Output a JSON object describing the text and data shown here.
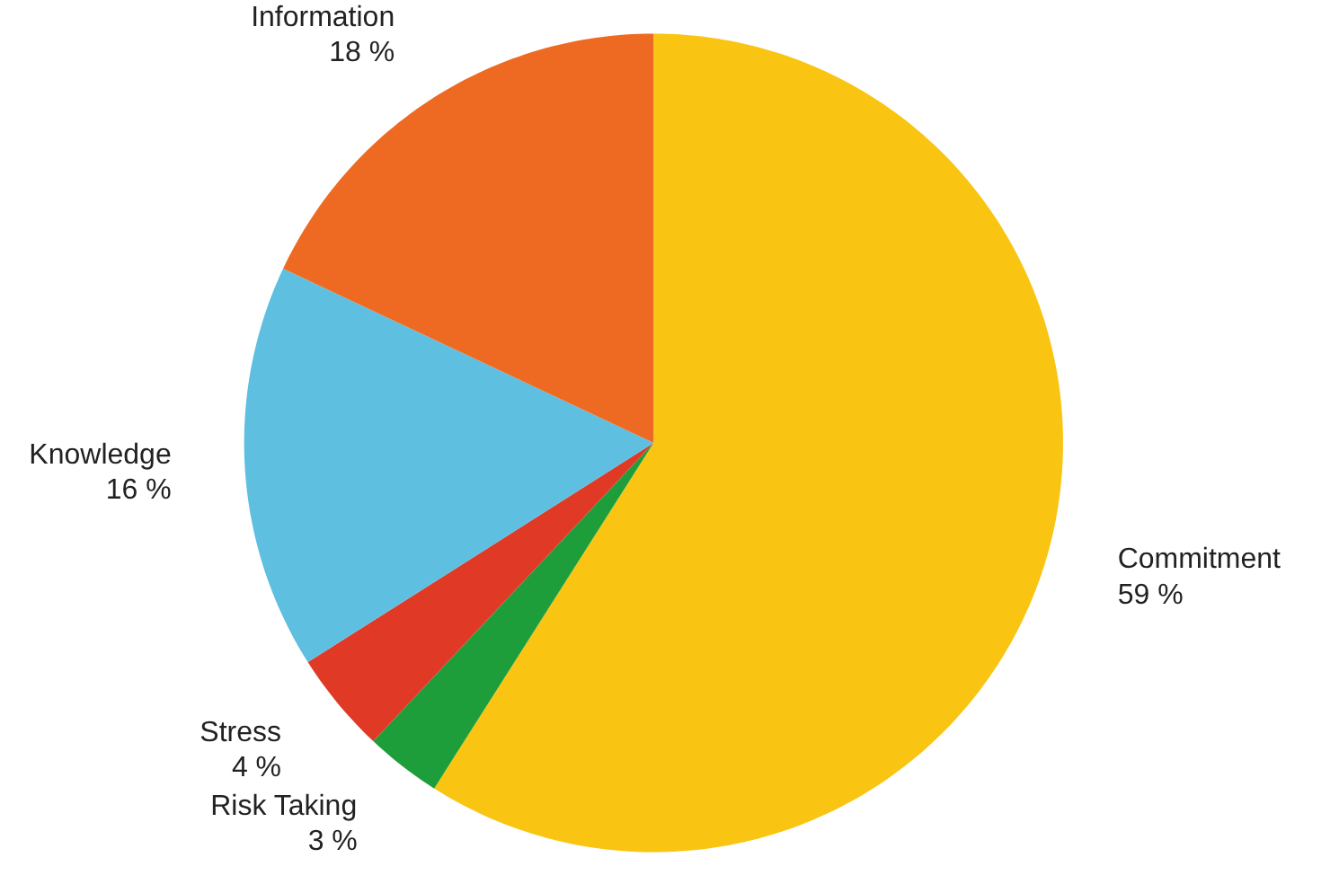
{
  "chart_data": {
    "type": "pie",
    "categories": [
      "Commitment",
      "Risk Taking",
      "Stress",
      "Knowledge",
      "Information"
    ],
    "values": [
      59,
      3,
      4,
      16,
      18
    ],
    "value_labels": [
      "59 %",
      "3 %",
      "4 %",
      "16 %",
      "18 %"
    ],
    "colors": [
      "#f9c512",
      "#1e9e3a",
      "#e03a26",
      "#5ebfe0",
      "#ee6a22"
    ]
  }
}
